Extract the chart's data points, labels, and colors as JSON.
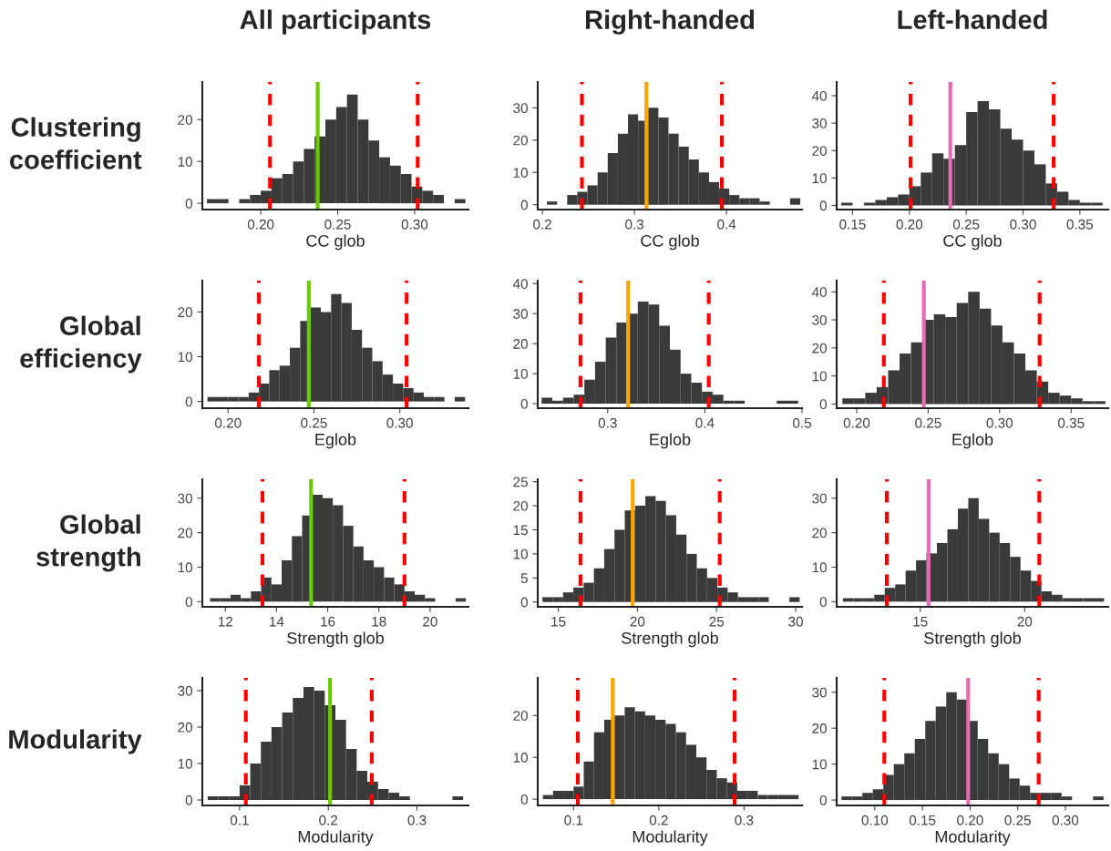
{
  "chart_data": [
    {
      "type": "histogram",
      "title": "All participants",
      "ylabel": "Clustering coefficient",
      "xlabel": "CC glob",
      "color": "#3a3a3a",
      "grid": false,
      "xlim": [
        0.162,
        0.335
      ],
      "xticks": [
        {
          "value": 0.2,
          "label": "0.20"
        },
        0.25,
        {
          "value": 0.3,
          "label": "0.30"
        }
      ],
      "ylim": [
        -1.5,
        29
      ],
      "yticks": [
        0,
        10,
        20
      ],
      "bins": [
        0.165,
        0.172,
        0.179,
        0.186,
        0.193,
        0.2,
        0.207,
        0.214,
        0.221,
        0.228,
        0.235,
        0.242,
        0.249,
        0.256,
        0.263,
        0.27,
        0.277,
        0.284,
        0.291,
        0.298,
        0.305,
        0.312,
        0.319,
        0.326,
        0.333
      ],
      "values": [
        1,
        1,
        0,
        1,
        2,
        3,
        6,
        7,
        10,
        13,
        16,
        20,
        23,
        26,
        20,
        15,
        11,
        9,
        7,
        4,
        3,
        2,
        0,
        1
      ],
      "ref_lines": [
        {
          "axis": "x",
          "value": 0.206,
          "color": "#ff0000",
          "line_style": "dashed"
        },
        {
          "axis": "x",
          "value": 0.302,
          "color": "#ff0000",
          "line_style": "dashed"
        },
        {
          "axis": "x",
          "value": 0.237,
          "color": "#66cc00",
          "line_style": "solid"
        }
      ]
    },
    {
      "type": "histogram",
      "title": "Right-handed",
      "xlabel": "CC glob",
      "color": "#3a3a3a",
      "grid": false,
      "xlim": [
        0.195,
        0.482
      ],
      "xticks": [
        0.2,
        0.3,
        0.4
      ],
      "ylim": [
        -1.5,
        38
      ],
      "yticks": [
        0,
        10,
        20,
        30
      ],
      "bins": [
        0.205,
        0.216,
        0.227,
        0.238,
        0.249,
        0.26,
        0.271,
        0.282,
        0.293,
        0.304,
        0.315,
        0.326,
        0.337,
        0.348,
        0.359,
        0.37,
        0.381,
        0.392,
        0.403,
        0.414,
        0.425,
        0.436,
        0.447,
        0.458,
        0.469,
        0.48
      ],
      "values": [
        1,
        0,
        3,
        4,
        6,
        10,
        16,
        22,
        28,
        26,
        30,
        27,
        22,
        18,
        14,
        10,
        7,
        5,
        3,
        2,
        2,
        1,
        0,
        0,
        2
      ],
      "ref_lines": [
        {
          "axis": "x",
          "value": 0.243,
          "color": "#ff0000",
          "line_style": "dashed"
        },
        {
          "axis": "x",
          "value": 0.395,
          "color": "#ff0000",
          "line_style": "dashed"
        },
        {
          "axis": "x",
          "value": 0.313,
          "color": "#ffa500",
          "line_style": "solid"
        }
      ]
    },
    {
      "type": "histogram",
      "title": "Left-handed",
      "xlabel": "CC glob",
      "color": "#3a3a3a",
      "grid": false,
      "xlim": [
        0.136,
        0.375
      ],
      "xticks": [
        0.15,
        {
          "value": 0.2,
          "label": "0.20"
        },
        0.25,
        {
          "value": 0.3,
          "label": "0.30"
        },
        0.35
      ],
      "ylim": [
        -1.5,
        45
      ],
      "yticks": [
        0,
        10,
        20,
        30,
        40
      ],
      "bins": [
        0.14,
        0.15,
        0.16,
        0.17,
        0.18,
        0.19,
        0.2,
        0.21,
        0.22,
        0.23,
        0.24,
        0.25,
        0.26,
        0.27,
        0.28,
        0.29,
        0.3,
        0.31,
        0.32,
        0.33,
        0.34,
        0.35,
        0.36,
        0.37
      ],
      "values": [
        1,
        0,
        1,
        2,
        3,
        4,
        7,
        12,
        19,
        17,
        22,
        34,
        38,
        35,
        28,
        24,
        20,
        15,
        8,
        5,
        2,
        1,
        1
      ],
      "ref_lines": [
        {
          "axis": "x",
          "value": 0.201,
          "color": "#ff0000",
          "line_style": "dashed"
        },
        {
          "axis": "x",
          "value": 0.327,
          "color": "#ff0000",
          "line_style": "dashed"
        },
        {
          "axis": "x",
          "value": 0.236,
          "color": "#e76bb3",
          "line_style": "solid"
        }
      ]
    },
    {
      "type": "histogram",
      "ylabel": "Global efficiency",
      "xlabel": "Eglob",
      "color": "#3a3a3a",
      "grid": false,
      "xlim": [
        0.185,
        0.34
      ],
      "xticks": [
        {
          "value": 0.2,
          "label": "0.20"
        },
        0.25,
        {
          "value": 0.3,
          "label": "0.30"
        }
      ],
      "ylim": [
        -1.5,
        27
      ],
      "yticks": [
        0,
        10,
        20
      ],
      "bins": [
        0.188,
        0.194,
        0.2,
        0.206,
        0.212,
        0.218,
        0.224,
        0.23,
        0.236,
        0.242,
        0.248,
        0.254,
        0.26,
        0.266,
        0.272,
        0.278,
        0.284,
        0.29,
        0.296,
        0.302,
        0.308,
        0.314,
        0.32,
        0.326,
        0.332,
        0.338
      ],
      "values": [
        1,
        1,
        1,
        1,
        2,
        4,
        7,
        8,
        12,
        18,
        21,
        20,
        24,
        22,
        16,
        12,
        9,
        6,
        4,
        3,
        2,
        1,
        1,
        0,
        1
      ],
      "ref_lines": [
        {
          "axis": "x",
          "value": 0.218,
          "color": "#ff0000",
          "line_style": "dashed"
        },
        {
          "axis": "x",
          "value": 0.304,
          "color": "#ff0000",
          "line_style": "dashed"
        },
        {
          "axis": "x",
          "value": 0.247,
          "color": "#66cc00",
          "line_style": "solid"
        }
      ]
    },
    {
      "type": "histogram",
      "xlabel": "Eglob",
      "color": "#3a3a3a",
      "grid": false,
      "xlim": [
        0.228,
        0.5
      ],
      "xticks": [
        0.3,
        0.4,
        0.5
      ],
      "ylim": [
        -1.5,
        41
      ],
      "yticks": [
        0,
        10,
        20,
        30,
        40
      ],
      "bins": [
        0.232,
        0.243,
        0.254,
        0.265,
        0.276,
        0.287,
        0.298,
        0.309,
        0.32,
        0.331,
        0.342,
        0.353,
        0.364,
        0.375,
        0.386,
        0.397,
        0.408,
        0.419,
        0.43,
        0.441,
        0.452,
        0.463,
        0.474,
        0.485,
        0.496
      ],
      "values": [
        2,
        1,
        2,
        3,
        8,
        14,
        22,
        27,
        30,
        34,
        33,
        26,
        18,
        10,
        7,
        4,
        3,
        1,
        1,
        0,
        0,
        0,
        1,
        1
      ],
      "ref_lines": [
        {
          "axis": "x",
          "value": 0.272,
          "color": "#ff0000",
          "line_style": "dashed"
        },
        {
          "axis": "x",
          "value": 0.404,
          "color": "#ff0000",
          "line_style": "dashed"
        },
        {
          "axis": "x",
          "value": 0.321,
          "color": "#ffa500",
          "line_style": "solid"
        }
      ]
    },
    {
      "type": "histogram",
      "xlabel": "Eglob",
      "color": "#3a3a3a",
      "grid": false,
      "xlim": [
        0.186,
        0.376
      ],
      "xticks": [
        {
          "value": 0.2,
          "label": "0.20"
        },
        0.25,
        {
          "value": 0.3,
          "label": "0.30"
        },
        0.35
      ],
      "ylim": [
        -1.5,
        44
      ],
      "yticks": [
        0,
        10,
        20,
        30,
        40
      ],
      "bins": [
        0.19,
        0.198,
        0.206,
        0.214,
        0.222,
        0.23,
        0.238,
        0.246,
        0.254,
        0.262,
        0.27,
        0.278,
        0.286,
        0.294,
        0.302,
        0.31,
        0.318,
        0.326,
        0.334,
        0.342,
        0.35,
        0.358,
        0.366,
        0.374
      ],
      "values": [
        2,
        2,
        4,
        6,
        12,
        18,
        22,
        30,
        32,
        31,
        36,
        40,
        34,
        28,
        22,
        18,
        12,
        8,
        4,
        3,
        2,
        1,
        1
      ],
      "ref_lines": [
        {
          "axis": "x",
          "value": 0.219,
          "color": "#ff0000",
          "line_style": "dashed"
        },
        {
          "axis": "x",
          "value": 0.328,
          "color": "#ff0000",
          "line_style": "dashed"
        },
        {
          "axis": "x",
          "value": 0.247,
          "color": "#e76bb3",
          "line_style": "solid"
        }
      ]
    },
    {
      "type": "histogram",
      "ylabel": "Global strength",
      "xlabel": "Strength glob",
      "color": "#3a3a3a",
      "grid": false,
      "xlim": [
        11.1,
        21.5
      ],
      "xticks": [
        12,
        14,
        16,
        18,
        20
      ],
      "ylim": [
        -1.5,
        35.5
      ],
      "yticks": [
        0,
        10,
        20,
        30
      ],
      "bins": [
        11.4,
        11.8,
        12.2,
        12.6,
        13,
        13.4,
        13.8,
        14.2,
        14.6,
        15,
        15.4,
        15.8,
        16.2,
        16.6,
        17,
        17.4,
        17.8,
        18.2,
        18.6,
        19,
        19.4,
        19.8,
        20.2,
        20.6,
        21,
        21.4
      ],
      "values": [
        1,
        1,
        2,
        1,
        3,
        7,
        5,
        12,
        19,
        25,
        31,
        30,
        28,
        22,
        16,
        12,
        10,
        7,
        5,
        3,
        2,
        1,
        0,
        0,
        1
      ],
      "ref_lines": [
        {
          "axis": "x",
          "value": 13.45,
          "color": "#ff0000",
          "line_style": "dashed"
        },
        {
          "axis": "x",
          "value": 19.0,
          "color": "#ff0000",
          "line_style": "dashed"
        },
        {
          "axis": "x",
          "value": 15.35,
          "color": "#66cc00",
          "line_style": "solid"
        }
      ]
    },
    {
      "type": "histogram",
      "xlabel": "Strength glob",
      "color": "#3a3a3a",
      "grid": false,
      "xlim": [
        13.7,
        30.4
      ],
      "xticks": [
        15,
        20,
        25,
        30
      ],
      "ylim": [
        -1,
        25.5
      ],
      "yticks": [
        0,
        5,
        10,
        15,
        20,
        25
      ],
      "bins": [
        14,
        14.65,
        15.3,
        15.95,
        16.6,
        17.25,
        17.9,
        18.55,
        19.2,
        19.85,
        20.5,
        21.15,
        21.8,
        22.45,
        23.1,
        23.75,
        24.4,
        25.05,
        25.7,
        26.35,
        27,
        27.65,
        28.3,
        28.95,
        29.6,
        30.25
      ],
      "values": [
        1,
        1,
        2,
        3,
        4,
        7,
        11,
        15,
        19,
        20,
        22,
        21,
        18,
        14,
        10,
        7,
        5,
        3,
        2,
        1,
        1,
        1,
        0,
        0,
        1
      ],
      "ref_lines": [
        {
          "axis": "x",
          "value": 16.4,
          "color": "#ff0000",
          "line_style": "dashed"
        },
        {
          "axis": "x",
          "value": 25.2,
          "color": "#ff0000",
          "line_style": "dashed"
        },
        {
          "axis": "x",
          "value": 19.7,
          "color": "#ffa500",
          "line_style": "solid"
        }
      ]
    },
    {
      "type": "histogram",
      "xlabel": "Strength glob",
      "color": "#3a3a3a",
      "grid": false,
      "xlim": [
        11.0,
        24.0
      ],
      "xticks": [
        15,
        20
      ],
      "ylim": [
        -1.5,
        35.5
      ],
      "yticks": [
        0,
        10,
        20,
        30
      ],
      "bins": [
        11.3,
        11.8,
        12.3,
        12.8,
        13.3,
        13.8,
        14.3,
        14.8,
        15.3,
        15.8,
        16.3,
        16.8,
        17.3,
        17.8,
        18.3,
        18.8,
        19.3,
        19.8,
        20.3,
        20.8,
        21.3,
        21.8,
        22.3,
        22.8,
        23.3,
        23.8
      ],
      "values": [
        1,
        1,
        1,
        2,
        4,
        5,
        9,
        12,
        14,
        17,
        21,
        27,
        30,
        24,
        20,
        17,
        13,
        9,
        6,
        3,
        2,
        1,
        1,
        1,
        1
      ],
      "ref_lines": [
        {
          "axis": "x",
          "value": 13.4,
          "color": "#ff0000",
          "line_style": "dashed"
        },
        {
          "axis": "x",
          "value": 20.7,
          "color": "#ff0000",
          "line_style": "dashed"
        },
        {
          "axis": "x",
          "value": 15.4,
          "color": "#e76bb3",
          "line_style": "solid"
        }
      ]
    },
    {
      "type": "histogram",
      "ylabel": "Modularity",
      "xlabel": "Modularity",
      "color": "#3a3a3a",
      "grid": false,
      "xlim": [
        0.058,
        0.358
      ],
      "xticks": [
        0.1,
        0.2,
        0.3
      ],
      "ylim": [
        -1.5,
        33.5
      ],
      "yticks": [
        0,
        10,
        20,
        30
      ],
      "bins": [
        0.064,
        0.076,
        0.088,
        0.1,
        0.112,
        0.124,
        0.136,
        0.148,
        0.16,
        0.172,
        0.184,
        0.196,
        0.208,
        0.22,
        0.232,
        0.244,
        0.256,
        0.268,
        0.28,
        0.292,
        0.304,
        0.316,
        0.328,
        0.34,
        0.352
      ],
      "values": [
        1,
        1,
        1,
        4,
        10,
        16,
        20,
        24,
        28,
        31,
        30,
        26,
        22,
        14,
        8,
        5,
        3,
        2,
        1,
        0,
        0,
        0,
        0,
        1
      ],
      "ref_lines": [
        {
          "axis": "x",
          "value": 0.107,
          "color": "#ff0000",
          "line_style": "dashed"
        },
        {
          "axis": "x",
          "value": 0.249,
          "color": "#ff0000",
          "line_style": "dashed"
        },
        {
          "axis": "x",
          "value": 0.202,
          "color": "#66cc00",
          "line_style": "solid"
        }
      ]
    },
    {
      "type": "histogram",
      "xlabel": "Modularity",
      "color": "#3a3a3a",
      "grid": false,
      "xlim": [
        0.058,
        0.368
      ],
      "xticks": [
        0.1,
        0.2,
        0.3
      ],
      "ylim": [
        -1.5,
        29
      ],
      "yticks": [
        0,
        10,
        20
      ],
      "bins": [
        0.064,
        0.076,
        0.088,
        0.1,
        0.112,
        0.124,
        0.136,
        0.148,
        0.16,
        0.172,
        0.184,
        0.196,
        0.208,
        0.22,
        0.232,
        0.244,
        0.256,
        0.268,
        0.28,
        0.292,
        0.304,
        0.316,
        0.328,
        0.34,
        0.352,
        0.364
      ],
      "values": [
        1,
        2,
        2,
        3,
        9,
        16,
        19,
        20,
        22,
        21,
        20,
        19,
        18,
        16,
        13,
        10,
        7,
        5,
        4,
        2,
        2,
        1,
        1,
        1,
        1
      ],
      "ref_lines": [
        {
          "axis": "x",
          "value": 0.105,
          "color": "#ff0000",
          "line_style": "dashed"
        },
        {
          "axis": "x",
          "value": 0.289,
          "color": "#ff0000",
          "line_style": "dashed"
        },
        {
          "axis": "x",
          "value": 0.146,
          "color": "#ffa500",
          "line_style": "solid"
        }
      ]
    },
    {
      "type": "histogram",
      "xlabel": "Modularity",
      "color": "#3a3a3a",
      "grid": false,
      "xlim": [
        0.06,
        0.345
      ],
      "xticks": [
        {
          "value": 0.1,
          "label": "0.10"
        },
        0.15,
        {
          "value": 0.2,
          "label": "0.20"
        },
        0.25,
        {
          "value": 0.3,
          "label": "0.30"
        }
      ],
      "ylim": [
        -1.5,
        34
      ],
      "yticks": [
        0,
        10,
        20,
        30
      ],
      "bins": [
        0.065,
        0.076,
        0.087,
        0.098,
        0.109,
        0.12,
        0.131,
        0.142,
        0.153,
        0.164,
        0.175,
        0.186,
        0.197,
        0.208,
        0.219,
        0.23,
        0.241,
        0.252,
        0.263,
        0.274,
        0.285,
        0.296,
        0.307,
        0.318,
        0.329,
        0.34
      ],
      "values": [
        1,
        1,
        2,
        3,
        7,
        10,
        13,
        17,
        22,
        26,
        30,
        28,
        22,
        17,
        13,
        10,
        6,
        4,
        2,
        2,
        2,
        1,
        0,
        0,
        1
      ],
      "ref_lines": [
        {
          "axis": "x",
          "value": 0.11,
          "color": "#ff0000",
          "line_style": "dashed"
        },
        {
          "axis": "x",
          "value": 0.272,
          "color": "#ff0000",
          "line_style": "dashed"
        },
        {
          "axis": "x",
          "value": 0.198,
          "color": "#e76bb3",
          "line_style": "solid"
        }
      ]
    }
  ]
}
